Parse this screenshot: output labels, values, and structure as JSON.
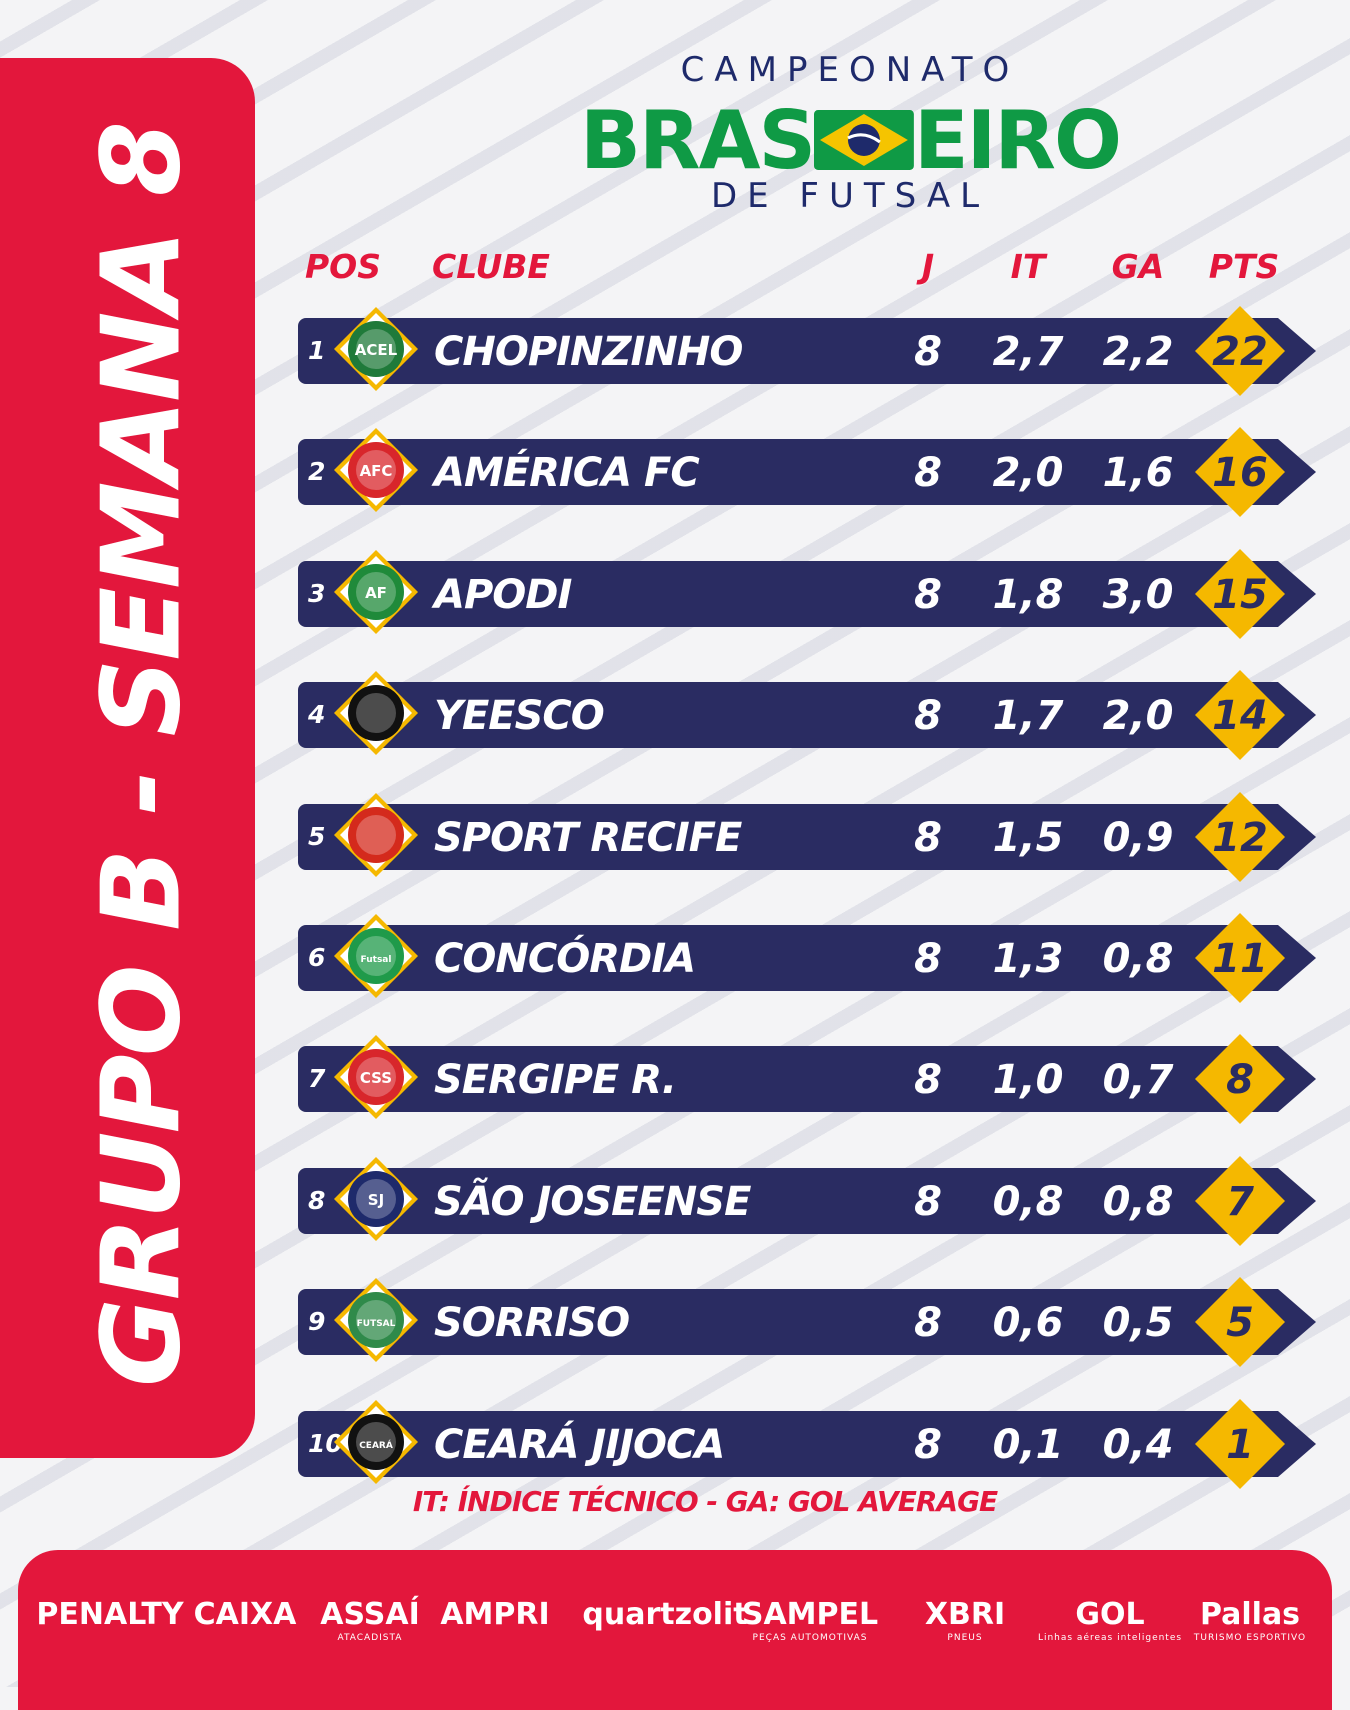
{
  "logo": {
    "top": "CAMPEONATO",
    "main_left": "BRAS",
    "main_right": "EIRO",
    "bottom": "DE FUTSAL",
    "colors": {
      "green": "#0f9a45",
      "yellow": "#f5c400",
      "blue": "#1e2a6b"
    }
  },
  "side_title": "GRUPO B - SEMANA 8",
  "headers": {
    "pos": "POS",
    "club": "CLUBE",
    "j": "J",
    "it": "IT",
    "ga": "GA",
    "pts": "PTS"
  },
  "standings": [
    {
      "pos": "1",
      "club": "CHOPINZINHO",
      "j": "8",
      "it": "2,7",
      "ga": "2,2",
      "pts": "22",
      "badge": "acel-crest-icon",
      "badge_text": "ACEL",
      "color": "#1f7a3a"
    },
    {
      "pos": "2",
      "club": "AMÉRICA FC",
      "j": "8",
      "it": "2,0",
      "ga": "1,6",
      "pts": "16",
      "badge": "afc-crest-icon",
      "badge_text": "AFC",
      "color": "#d8262b"
    },
    {
      "pos": "3",
      "club": "APODI",
      "j": "8",
      "it": "1,8",
      "ga": "3,0",
      "pts": "15",
      "badge": "apodi-crest-icon",
      "badge_text": "AF",
      "color": "#1f8a3a"
    },
    {
      "pos": "4",
      "club": "YEESCO",
      "j": "8",
      "it": "1,7",
      "ga": "2,0",
      "pts": "14",
      "badge": "yeesco-crest-icon",
      "badge_text": "",
      "color": "#111111"
    },
    {
      "pos": "5",
      "club": "SPORT RECIFE",
      "j": "8",
      "it": "1,5",
      "ga": "0,9",
      "pts": "12",
      "badge": "sport-recife-crest-icon",
      "badge_text": "",
      "color": "#d42a1c"
    },
    {
      "pos": "6",
      "club": "CONCÓRDIA",
      "j": "8",
      "it": "1,3",
      "ga": "0,8",
      "pts": "11",
      "badge": "concordia-crest-icon",
      "badge_text": "Futsal",
      "color": "#1f9a4a"
    },
    {
      "pos": "7",
      "club": "SERGIPE R.",
      "j": "8",
      "it": "1,0",
      "ga": "0,7",
      "pts": "8",
      "badge": "sergipe-crest-icon",
      "badge_text": "CSS",
      "color": "#d8262b"
    },
    {
      "pos": "8",
      "club": "SÃO JOSEENSE",
      "j": "8",
      "it": "0,8",
      "ga": "0,8",
      "pts": "7",
      "badge": "sao-joseense-crest-icon",
      "badge_text": "SJ",
      "color": "#1e2a6b"
    },
    {
      "pos": "9",
      "club": "SORRISO",
      "j": "8",
      "it": "0,6",
      "ga": "0,5",
      "pts": "5",
      "badge": "sorriso-crest-icon",
      "badge_text": "FUTSAL",
      "color": "#2f8a4a"
    },
    {
      "pos": "10",
      "club": "CEARÁ JIJOCA",
      "j": "8",
      "it": "0,1",
      "ga": "0,4",
      "pts": "1",
      "badge": "ceara-crest-icon",
      "badge_text": "CEARÁ",
      "color": "#111111"
    }
  ],
  "legend": "IT: ÍNDICE TÉCNICO - GA: GOL AVERAGE",
  "sponsors": [
    {
      "name": "PENALTY",
      "sub": ""
    },
    {
      "name": "CAIXA",
      "sub": ""
    },
    {
      "name": "ASSAÍ",
      "sub": "ATACADISTA"
    },
    {
      "name": "AMPRI",
      "sub": ""
    },
    {
      "name": "quartzolit",
      "sub": ""
    },
    {
      "name": "SAMPEL",
      "sub": "PEÇAS AUTOMOTIVAS"
    },
    {
      "name": "XBRI",
      "sub": "PNEUS"
    },
    {
      "name": "GOL",
      "sub": "Linhas aéreas inteligentes"
    },
    {
      "name": "Pallas",
      "sub": "TURISMO ESPORTIVO"
    }
  ],
  "accent_colors": {
    "red": "#e3173c",
    "navy": "#2a2c62",
    "gold": "#f5b800"
  }
}
